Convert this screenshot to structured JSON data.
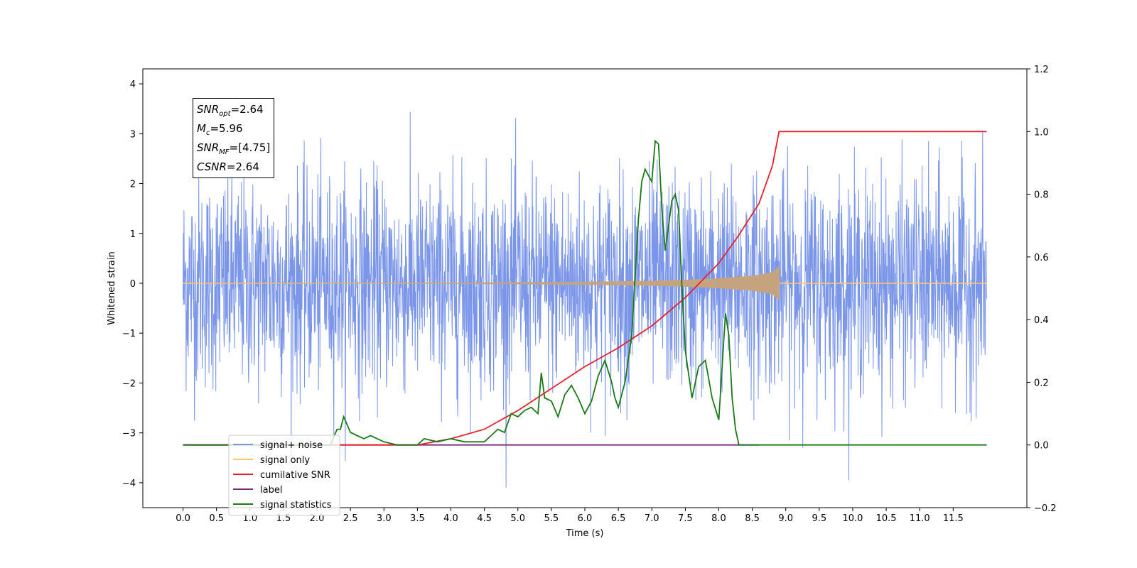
{
  "chart_data": {
    "type": "line",
    "xlabel": "Time (s)",
    "ylabel_left": "Whitened strain",
    "ylabel_right": "",
    "xlim": [
      -0.6,
      12.6
    ],
    "ylim_left": [
      -4.5,
      4.3
    ],
    "ylim_right": [
      -0.2,
      1.2
    ],
    "x_ticks": [
      "0.0",
      "0.5",
      "1.0",
      "1.5",
      "2.0",
      "2.5",
      "3.0",
      "3.5",
      "4.0",
      "4.5",
      "5.0",
      "5.5",
      "6.0",
      "6.5",
      "7.0",
      "7.5",
      "8.0",
      "8.5",
      "9.0",
      "9.5",
      "10.0",
      "10.5",
      "11.0",
      "11.5"
    ],
    "y_ticks_left": [
      "4",
      "3",
      "2",
      "1",
      "0",
      "−1",
      "−2",
      "−3",
      "−4"
    ],
    "y_ticks_right": [
      "1.2",
      "1.0",
      "0.8",
      "0.6",
      "0.4",
      "0.2",
      "0.0",
      "−0.2"
    ],
    "grid": false,
    "legend_position": "lower-left",
    "colors": {
      "signal_noise": "#7b96e8",
      "signal_only": "#ffc76b",
      "chirp": "#c4a37e",
      "cumulative": "#e8222a",
      "label_line": "#7b2a7b",
      "stats": "#1a7a1a"
    },
    "series": [
      {
        "name": "signal+ noise",
        "axis": "left",
        "note_envelope": "white noise roughly ±2.3, spikes to ±4",
        "x_range": [
          0.0,
          12.0
        ]
      },
      {
        "name": "signal only",
        "axis": "left",
        "chirp_amplitude": {
          "x": [
            0.0,
            4.0,
            6.0,
            7.0,
            7.5,
            8.0,
            8.5,
            8.8,
            8.9,
            8.91,
            12.0
          ],
          "y": [
            0.0,
            0.01,
            0.03,
            0.05,
            0.07,
            0.1,
            0.15,
            0.22,
            0.35,
            0.0,
            0.0
          ]
        }
      },
      {
        "name": "cumilative SNR",
        "axis": "right",
        "x": [
          0.0,
          3.5,
          4.0,
          4.5,
          5.0,
          5.5,
          6.0,
          6.5,
          7.0,
          7.5,
          8.0,
          8.3,
          8.6,
          8.8,
          8.9,
          12.0
        ],
        "y": [
          0.0,
          0.0,
          0.02,
          0.05,
          0.11,
          0.18,
          0.25,
          0.31,
          0.38,
          0.47,
          0.58,
          0.67,
          0.77,
          0.89,
          1.0,
          1.0
        ]
      },
      {
        "name": "label",
        "axis": "right",
        "x": [
          0.0,
          8.6
        ],
        "y": [
          0.0,
          0.0
        ]
      },
      {
        "name": "signal statistics",
        "axis": "right",
        "x": [
          0.0,
          2.2,
          2.3,
          2.35,
          2.4,
          2.5,
          2.6,
          2.7,
          2.8,
          2.9,
          3.0,
          3.2,
          3.5,
          3.6,
          3.8,
          4.0,
          4.2,
          4.4,
          4.5,
          4.6,
          4.7,
          4.8,
          4.9,
          5.0,
          5.1,
          5.2,
          5.3,
          5.35,
          5.4,
          5.5,
          5.6,
          5.7,
          5.8,
          5.9,
          6.0,
          6.1,
          6.2,
          6.3,
          6.4,
          6.45,
          6.5,
          6.6,
          6.7,
          6.8,
          6.85,
          6.9,
          7.0,
          7.05,
          7.1,
          7.15,
          7.2,
          7.3,
          7.35,
          7.4,
          7.45,
          7.5,
          7.6,
          7.7,
          7.8,
          7.9,
          8.0,
          8.1,
          8.15,
          8.2,
          8.25,
          8.3,
          8.4,
          8.5,
          8.6,
          12.0
        ],
        "y": [
          0.0,
          0.0,
          0.05,
          0.05,
          0.09,
          0.04,
          0.03,
          0.02,
          0.03,
          0.02,
          0.01,
          0.0,
          0.0,
          0.02,
          0.01,
          0.02,
          0.01,
          0.01,
          0.01,
          0.03,
          0.05,
          0.04,
          0.1,
          0.09,
          0.11,
          0.12,
          0.1,
          0.23,
          0.15,
          0.14,
          0.09,
          0.16,
          0.19,
          0.15,
          0.1,
          0.14,
          0.22,
          0.27,
          0.2,
          0.15,
          0.12,
          0.2,
          0.35,
          0.72,
          0.84,
          0.88,
          0.84,
          0.97,
          0.96,
          0.75,
          0.62,
          0.78,
          0.8,
          0.75,
          0.5,
          0.3,
          0.15,
          0.25,
          0.27,
          0.15,
          0.08,
          0.42,
          0.35,
          0.15,
          0.05,
          0.0,
          0.0,
          0.0,
          0.0,
          0.0
        ]
      }
    ],
    "legend": [
      {
        "label": "signal+ noise",
        "color": "#7b96e8"
      },
      {
        "label": "signal only",
        "color": "#ffc76b"
      },
      {
        "label": "cumilative SNR",
        "color": "#e8222a"
      },
      {
        "label": "label",
        "color": "#7b2a7b"
      },
      {
        "label": "signal statistics",
        "color": "#1a7a1a"
      }
    ],
    "annotation": {
      "snr_opt_var": "SNR",
      "snr_opt_sub": "opt",
      "snr_opt_val": "=2.64",
      "mc_var": "M",
      "mc_sub": "c",
      "mc_val": "=5.96",
      "snr_mf_var": "SNR",
      "snr_mf_sub": "MF",
      "snr_mf_val": "=[4.75]",
      "csnr_var": "CSNR",
      "csnr_val": "=2.64"
    }
  }
}
